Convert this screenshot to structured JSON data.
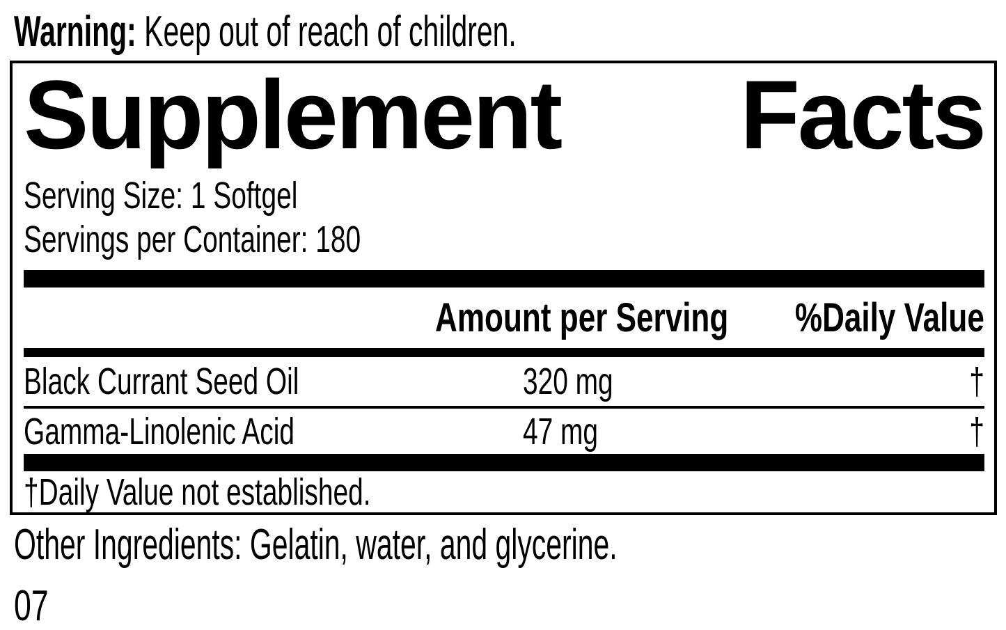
{
  "colors": {
    "ink": "#000000",
    "paper": "#ffffff"
  },
  "warning": {
    "label": "Warning:",
    "rest": " Keep out of reach of children."
  },
  "panel": {
    "title": {
      "word1": "Supplement",
      "word2": "Facts"
    },
    "serving_size": "Serving Size: 1 Softgel",
    "servings_per_container": "Servings per Container: 180",
    "columns": {
      "amount": "Amount per Serving",
      "daily_value": "%Daily Value"
    },
    "rows": [
      {
        "name": "Black Currant Seed Oil",
        "amount": "320 mg",
        "daily_value": "†"
      },
      {
        "name": "Gamma-Linolenic Acid",
        "amount": "47 mg",
        "daily_value": "†"
      }
    ],
    "footnote": "†Daily Value not established."
  },
  "other_ingredients": "Other Ingredients: Gelatin, water, and glycerine.",
  "code": "07"
}
